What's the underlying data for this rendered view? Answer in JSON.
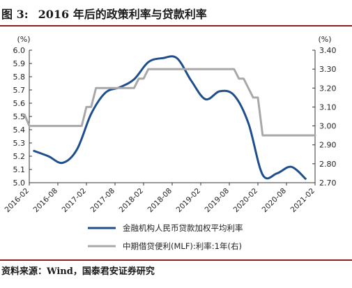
{
  "header": {
    "figure_label": "图 3:",
    "title": "2016 年后的政策利率与贷款利率"
  },
  "source": "资料来源：Wind，国泰君安证券研究",
  "chart_data": {
    "type": "line",
    "x": [
      "2016-02",
      "2016-05",
      "2016-08",
      "2016-11",
      "2017-02",
      "2017-05",
      "2017-08",
      "2017-11",
      "2018-02",
      "2018-05",
      "2018-08",
      "2018-11",
      "2019-02",
      "2019-05",
      "2019-08",
      "2019-11",
      "2020-02",
      "2020-05",
      "2020-08",
      "2020-11",
      "2021-02"
    ],
    "x_tick_labels": [
      "2016-02",
      "2016-08",
      "2017-02",
      "2017-08",
      "2018-02",
      "2018-08",
      "2019-02",
      "2019-08",
      "2020-02",
      "2020-08",
      "2021-02"
    ],
    "left_axis": {
      "unit": "(%)",
      "range": [
        5.0,
        6.0
      ],
      "ticks": [
        "5.0",
        "5.1",
        "5.2",
        "5.3",
        "5.4",
        "5.5",
        "5.6",
        "5.7",
        "5.8",
        "5.9",
        "6.0"
      ]
    },
    "right_axis": {
      "unit": "(%)",
      "range": [
        2.7,
        3.4
      ],
      "ticks": [
        "2.70",
        "2.80",
        "2.90",
        "3.00",
        "3.10",
        "3.20",
        "3.30",
        "3.40"
      ]
    },
    "grid": false,
    "legend_placement": "bottom",
    "series": [
      {
        "name": "金融机构人民币贷款加权平均利率",
        "axis": "left",
        "color": "#1f4e8c",
        "x": [
          "2016-03",
          "2016-06",
          "2016-09",
          "2016-12",
          "2017-03",
          "2017-06",
          "2017-09",
          "2017-12",
          "2018-03",
          "2018-06",
          "2018-09",
          "2018-12",
          "2019-03",
          "2019-06",
          "2019-09",
          "2019-12",
          "2020-03",
          "2020-06",
          "2020-09",
          "2020-12"
        ],
        "values": [
          5.24,
          5.2,
          5.15,
          5.25,
          5.52,
          5.68,
          5.72,
          5.78,
          5.91,
          5.94,
          5.94,
          5.77,
          5.63,
          5.69,
          5.66,
          5.45,
          5.06,
          5.07,
          5.12,
          5.03
        ]
      },
      {
        "name": "中期借贷便利(MLF):利率:1年(右)",
        "axis": "right",
        "color": "#a8a8a8",
        "x": [
          "2016-01",
          "2016-02",
          "2017-01",
          "2017-02",
          "2017-03",
          "2017-04",
          "2017-12",
          "2018-01",
          "2018-02",
          "2018-03",
          "2019-09",
          "2019-10",
          "2019-11",
          "2020-01",
          "2020-02",
          "2020-03",
          "2020-04",
          "2021-02"
        ],
        "values": [
          3.06,
          3.0,
          3.0,
          3.1,
          3.1,
          3.2,
          3.2,
          3.25,
          3.25,
          3.3,
          3.3,
          3.25,
          3.25,
          3.15,
          3.15,
          2.95,
          2.95,
          2.95
        ]
      }
    ]
  }
}
